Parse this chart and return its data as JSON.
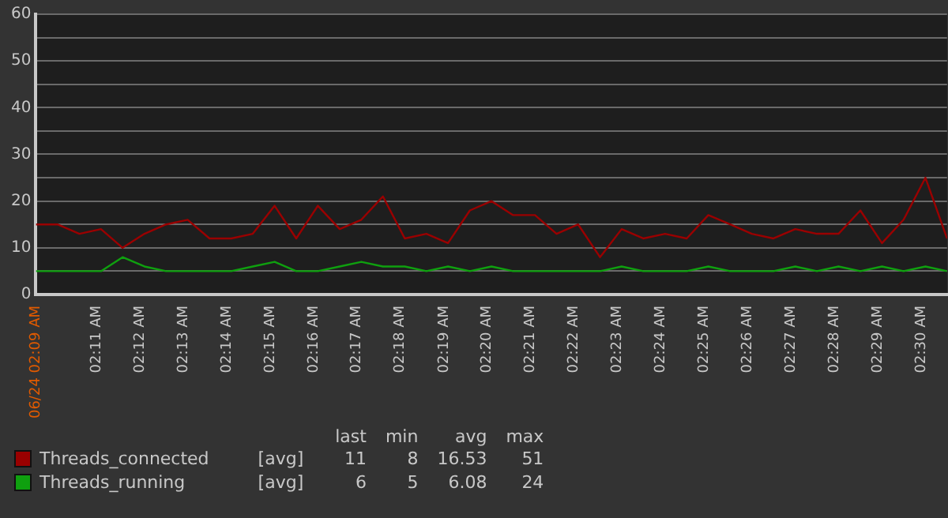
{
  "chart_data": {
    "type": "line",
    "x": [
      2.16,
      2.1683,
      2.1767,
      2.185,
      2.1933,
      2.2017,
      2.21,
      2.2183,
      2.2267,
      2.235,
      2.2433,
      2.2517,
      2.26,
      2.2683,
      2.2767,
      2.285,
      2.2933,
      2.3017,
      2.31,
      2.3183,
      2.3267,
      2.335,
      2.3433,
      2.3517,
      2.36,
      2.3683,
      2.3767,
      2.385,
      2.3933,
      2.4017,
      2.41,
      2.4183,
      2.4267,
      2.435,
      2.4433,
      2.4517,
      2.46,
      2.4683,
      2.4767,
      2.485,
      2.4933,
      2.5017,
      2.51
    ],
    "series": [
      {
        "name": "Threads_connected",
        "color": "#9a0000",
        "values": [
          15,
          15,
          13,
          14,
          10,
          13,
          15,
          16,
          12,
          12,
          13,
          19,
          12,
          19,
          14,
          16,
          21,
          12,
          13,
          11,
          18,
          20,
          17,
          17,
          13,
          15,
          8,
          14,
          12,
          13,
          12,
          17,
          15,
          13,
          12,
          14,
          13,
          13,
          18,
          11,
          16,
          25,
          12
        ]
      },
      {
        "name": "Threads_running",
        "color": "#0fa00f",
        "values": [
          5,
          5,
          5,
          5,
          8,
          6,
          5,
          5,
          5,
          5,
          6,
          7,
          5,
          5,
          6,
          7,
          6,
          6,
          5,
          6,
          5,
          6,
          5,
          5,
          5,
          5,
          5,
          6,
          5,
          5,
          5,
          6,
          5,
          5,
          5,
          6,
          5,
          6,
          5,
          6,
          5,
          6,
          5
        ]
      }
    ],
    "xlim": [
      2.16,
      2.51
    ],
    "xticks": [
      {
        "value": 2.16,
        "label": "06/24 02:09 AM"
      },
      {
        "value": 2.1833,
        "label": "02:11 AM"
      },
      {
        "value": 2.2,
        "label": "02:12 AM"
      },
      {
        "value": 2.2167,
        "label": "02:13 AM"
      },
      {
        "value": 2.2333,
        "label": "02:14 AM"
      },
      {
        "value": 2.25,
        "label": "02:15 AM"
      },
      {
        "value": 2.2667,
        "label": "02:16 AM"
      },
      {
        "value": 2.2833,
        "label": "02:17 AM"
      },
      {
        "value": 2.3,
        "label": "02:18 AM"
      },
      {
        "value": 2.3167,
        "label": "02:19 AM"
      },
      {
        "value": 2.3333,
        "label": "02:20 AM"
      },
      {
        "value": 2.35,
        "label": "02:21 AM"
      },
      {
        "value": 2.3667,
        "label": "02:22 AM"
      },
      {
        "value": 2.3833,
        "label": "02:23 AM"
      },
      {
        "value": 2.4,
        "label": "02:24 AM"
      },
      {
        "value": 2.4167,
        "label": "02:25 AM"
      },
      {
        "value": 2.4333,
        "label": "02:26 AM"
      },
      {
        "value": 2.45,
        "label": "02:27 AM"
      },
      {
        "value": 2.4667,
        "label": "02:28 AM"
      },
      {
        "value": 2.4833,
        "label": "02:29 AM"
      },
      {
        "value": 2.5,
        "label": "02:30 AM"
      }
    ],
    "ylim": [
      0,
      60
    ],
    "yticks": [
      0,
      {
        "value": 5,
        "label": null
      },
      10,
      {
        "value": 15,
        "label": null
      },
      20,
      {
        "value": 25,
        "label": null
      },
      30,
      {
        "value": 35,
        "label": null
      },
      40,
      {
        "value": 45,
        "label": null
      },
      50,
      {
        "value": 55,
        "label": null
      },
      60
    ],
    "grid": "y",
    "legend": "bottom",
    "marker": "none",
    "line_style": "solid",
    "annotations": [
      "last",
      "min",
      "avg",
      "max",
      "[avg]",
      "11",
      "8",
      "16.53",
      "51",
      "[avg]",
      "6",
      "5",
      "6.08",
      "24"
    ]
  }
}
